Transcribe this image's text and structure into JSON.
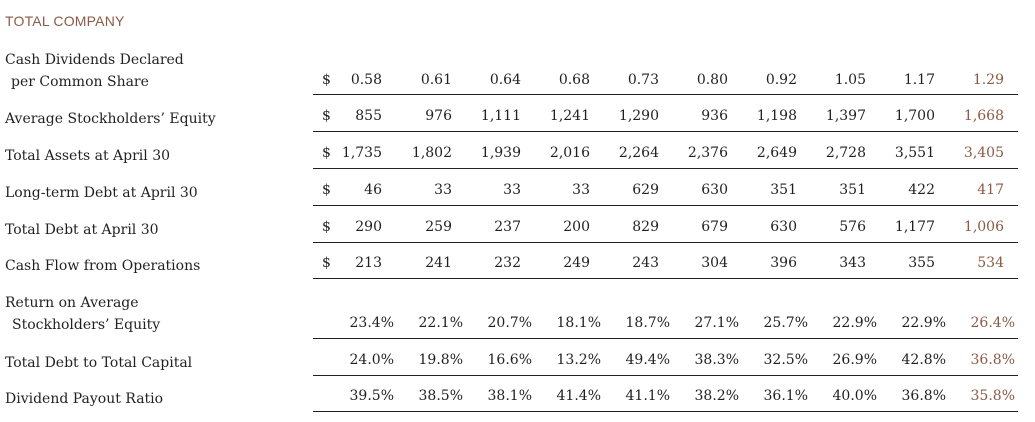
{
  "colors": {
    "text": "#231f20",
    "accent": "#8c5a45"
  },
  "title": "TOTAL COMPANY",
  "rows": [
    {
      "label": [
        "Cash Dividends Declared",
        "per Common Share"
      ],
      "dollar": "$",
      "values": [
        "0.58",
        "0.61",
        "0.64",
        "0.68",
        "0.73",
        "0.80",
        "0.92",
        "1.05",
        "1.17",
        "1.29"
      ]
    },
    {
      "label": [
        "Average Stockholders’ Equity"
      ],
      "dollar": "$",
      "values": [
        "855",
        "976",
        "1,111",
        "1,241",
        "1,290",
        "936",
        "1,198",
        "1,397",
        "1,700",
        "1,668"
      ]
    },
    {
      "label": [
        "Total Assets at April 30"
      ],
      "dollar": "$",
      "values": [
        "1,735",
        "1,802",
        "1,939",
        "2,016",
        "2,264",
        "2,376",
        "2,649",
        "2,728",
        "3,551",
        "3,405"
      ]
    },
    {
      "label": [
        "Long-term Debt at April 30"
      ],
      "dollar": "$",
      "values": [
        "46",
        "33",
        "33",
        "33",
        "629",
        "630",
        "351",
        "351",
        "422",
        "417"
      ]
    },
    {
      "label": [
        "Total Debt at April 30"
      ],
      "dollar": "$",
      "values": [
        "290",
        "259",
        "237",
        "200",
        "829",
        "679",
        "630",
        "576",
        "1,177",
        "1,006"
      ]
    },
    {
      "label": [
        "Cash Flow from Operations"
      ],
      "dollar": "$",
      "values": [
        "213",
        "241",
        "232",
        "249",
        "243",
        "304",
        "396",
        "343",
        "355",
        "534"
      ]
    },
    {
      "label": [
        "Return on Average",
        "Stockholders’ Equity"
      ],
      "dollar": "",
      "values": [
        "23.4%",
        "22.1%",
        "20.7%",
        "18.1%",
        "18.7%",
        "27.1%",
        "25.7%",
        "22.9%",
        "22.9%",
        "26.4%"
      ]
    },
    {
      "label": [
        "Total Debt to Total Capital"
      ],
      "dollar": "",
      "values": [
        "24.0%",
        "19.8%",
        "16.6%",
        "13.2%",
        "49.4%",
        "38.3%",
        "32.5%",
        "26.9%",
        "42.8%",
        "36.8%"
      ]
    },
    {
      "label": [
        "Dividend Payout Ratio"
      ],
      "dollar": "",
      "values": [
        "39.5%",
        "38.5%",
        "38.1%",
        "41.4%",
        "41.1%",
        "38.2%",
        "36.1%",
        "40.0%",
        "36.8%",
        "35.8%"
      ]
    }
  ]
}
